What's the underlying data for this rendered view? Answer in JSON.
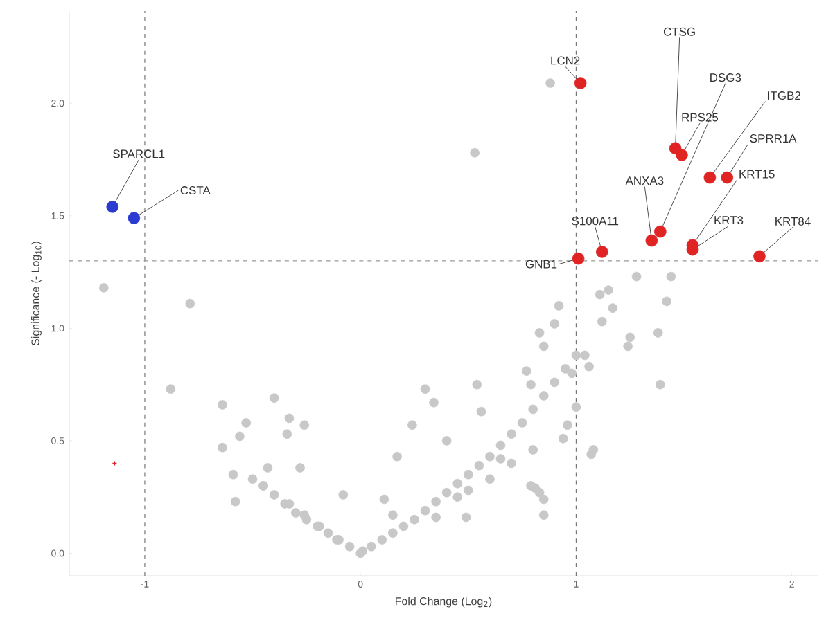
{
  "chart_data": {
    "type": "scatter",
    "xlabel": "Fold Change (Log$_{2}$)",
    "ylabel": "Significance (- Log$_{10}$)",
    "xlim": [
      -1.35,
      2.12
    ],
    "ylim": [
      -0.1,
      2.41
    ],
    "xticks": [
      -1,
      0,
      1,
      2
    ],
    "yticks": [
      {
        "value": 0,
        "label": "0.0"
      },
      {
        "value": 0.5,
        "label": "0.5"
      },
      {
        "value": 1,
        "label": "1.0"
      },
      {
        "value": 1.5,
        "label": "1.5"
      },
      {
        "value": 2,
        "label": "2.0"
      }
    ],
    "grid": false,
    "ref_lines": [
      {
        "axis": "x",
        "value": -1,
        "color": "#777777",
        "line_style": "dashed"
      },
      {
        "axis": "x",
        "value": 1,
        "color": "#777777",
        "line_style": "dashed"
      },
      {
        "axis": "y",
        "value": 1.3,
        "color": "#999999",
        "line_style": "dashed"
      }
    ],
    "series": [
      {
        "color": "#c8c8c8",
        "marker": "circle",
        "x": [
          0,
          -0.05,
          -0.1,
          -0.15,
          -0.2,
          -0.25,
          -0.3,
          -0.35,
          -0.4,
          -0.45,
          -0.5,
          0.05,
          0.1,
          0.15,
          0.2,
          0.25,
          0.3,
          0.35,
          0.4,
          0.45,
          0.5,
          0.55,
          0.6,
          0.65,
          0.7,
          0.75,
          0.8,
          0.85,
          0.9,
          0.95,
          1.0,
          0.01,
          -0.11,
          -0.19,
          -0.26,
          -0.33,
          -0.45,
          -0.28,
          -0.43,
          -0.34,
          -0.26,
          -0.33,
          -0.58,
          -0.59,
          -0.64,
          -0.56,
          -0.53,
          -0.4,
          -0.64,
          -0.08,
          -1.19,
          -0.79,
          -0.88,
          0.88,
          0.53,
          0.3,
          0.54,
          0.24,
          0.34,
          0.17,
          0.4,
          0.56,
          0.79,
          0.83,
          0.85,
          0.77,
          0.81,
          0.49,
          0.11,
          0.15,
          0.9,
          1.11,
          1.17,
          1.04,
          1.07,
          0.94,
          0.79,
          0.85,
          0.98,
          1.0,
          0.96,
          1.28,
          1.44,
          1.42,
          1.38,
          1.25,
          1.24,
          1.39,
          1.15,
          1.12,
          1.06,
          1.08,
          0.8,
          0.83,
          0.85,
          0.7,
          0.6,
          0.65,
          0.45,
          0.5,
          0.35,
          0.92
        ],
        "values": [
          0,
          0.03,
          0.06,
          0.09,
          0.12,
          0.15,
          0.18,
          0.22,
          0.26,
          0.3,
          0.33,
          0.03,
          0.06,
          0.09,
          0.12,
          0.15,
          0.19,
          0.23,
          0.27,
          0.31,
          0.35,
          0.39,
          0.43,
          0.48,
          0.53,
          0.58,
          0.64,
          0.7,
          0.76,
          0.82,
          0.88,
          0.01,
          0.06,
          0.12,
          0.17,
          0.22,
          0.3,
          0.38,
          0.38,
          0.53,
          0.57,
          0.6,
          0.23,
          0.35,
          0.47,
          0.52,
          0.58,
          0.69,
          0.66,
          0.26,
          1.18,
          1.11,
          0.73,
          2.09,
          1.78,
          0.73,
          0.75,
          0.57,
          0.67,
          0.43,
          0.5,
          0.63,
          0.75,
          0.98,
          0.92,
          0.81,
          0.29,
          0.16,
          0.24,
          0.17,
          1.02,
          1.15,
          1.09,
          0.88,
          0.44,
          0.51,
          0.3,
          0.24,
          0.8,
          0.65,
          0.57,
          1.23,
          1.23,
          1.12,
          0.98,
          0.96,
          0.92,
          0.75,
          1.17,
          1.03,
          0.83,
          0.46,
          0.46,
          0.27,
          0.17,
          0.4,
          0.33,
          0.42,
          0.25,
          0.28,
          0.16,
          1.1
        ]
      },
      {
        "color": "#2b3bd0",
        "marker": "circle",
        "x": [
          -1.15,
          -1.05
        ],
        "values": [
          1.54,
          1.49
        ]
      },
      {
        "color": "#e02424",
        "marker": "circle",
        "x": [
          1.02,
          1.46,
          1.49,
          1.62,
          1.7,
          1.35,
          1.39,
          1.54,
          1.54,
          1.85,
          1.12,
          1.01
        ],
        "values": [
          2.09,
          1.8,
          1.77,
          1.67,
          1.67,
          1.39,
          1.43,
          1.37,
          1.35,
          1.32,
          1.34,
          1.31
        ]
      },
      {
        "color": "#e02424",
        "marker": "cross",
        "x": [
          -1.14
        ],
        "values": [
          0.4
        ]
      }
    ],
    "annotations": [
      {
        "text": "SPARCL1",
        "x": -1.15,
        "y": 1.54
      },
      {
        "text": "CSTA",
        "x": -1.05,
        "y": 1.49
      },
      {
        "text": "LCN2",
        "x": 1.02,
        "y": 2.09
      },
      {
        "text": "CTSG",
        "x": 1.46,
        "y": 1.8
      },
      {
        "text": "DSG3",
        "x": 1.39,
        "y": 1.43
      },
      {
        "text": "RPS25",
        "x": 1.49,
        "y": 1.77
      },
      {
        "text": "ITGB2",
        "x": 1.62,
        "y": 1.67
      },
      {
        "text": "SPRR1A",
        "x": 1.7,
        "y": 1.67
      },
      {
        "text": "ANXA3",
        "x": 1.35,
        "y": 1.39
      },
      {
        "text": "KRT15",
        "x": 1.54,
        "y": 1.37
      },
      {
        "text": "S100A11",
        "x": 1.12,
        "y": 1.34
      },
      {
        "text": "KRT3",
        "x": 1.54,
        "y": 1.35
      },
      {
        "text": "KRT84",
        "x": 1.85,
        "y": 1.32
      },
      {
        "text": "GNB1",
        "x": 1.01,
        "y": 1.31
      }
    ]
  }
}
